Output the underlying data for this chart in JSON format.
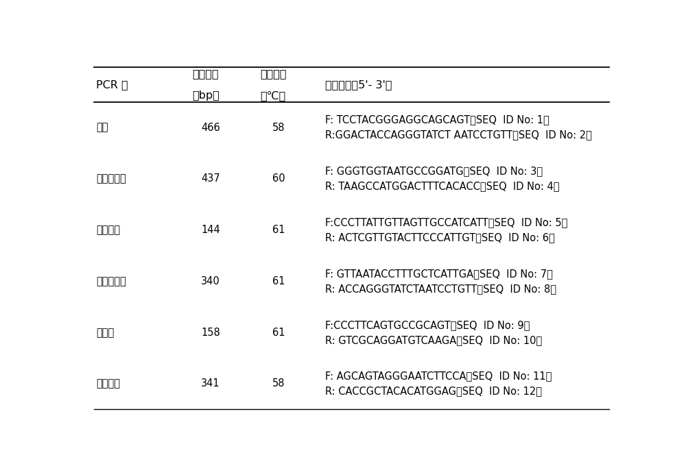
{
  "header_col1": "PCR 组",
  "header_col2_line1": "产物大小",
  "header_col2_line2": "（bp）",
  "header_col3_line1": "退火温度",
  "header_col3_line2": "（℃）",
  "header_col4": "引物序列（5'- 3'）",
  "rows": [
    {
      "group": "总菌",
      "size": "466",
      "temp": "58",
      "primers": [
        "F: TCCTACGGGAGGCAGCAGT（SEQ  ID No: 1）",
        "R:GGACTACCAGGGTATCT AATCCTGTT（SEQ  ID No: 2）"
      ]
    },
    {
      "group": "双岐杆菌属",
      "size": "437",
      "temp": "60",
      "primers": [
        "F: GGGTGGTAATGCCGGATG（SEQ  ID No: 3）",
        "R: TAAGCCATGGACTTTCACACC（SEQ  ID No: 4）"
      ]
    },
    {
      "group": "肠球菌属",
      "size": "144",
      "temp": "61",
      "primers": [
        "F:CCCTTATTGTTAGTTGCCATCATT（SEQ  ID No: 5）",
        "R: ACTCGTTGTACTTCCCATTGT（SEQ  ID No: 6）"
      ]
    },
    {
      "group": "大肠杆菌属",
      "size": "340",
      "temp": "61",
      "primers": [
        "F: GTTAATACCTTTGCTCATTGA（SEQ  ID No: 7）",
        "R: ACCAGGGTATCTAATCCTGTT（SEQ  ID No: 8）"
      ]
    },
    {
      "group": "梭菌属",
      "size": "158",
      "temp": "61",
      "primers": [
        "F:CCCTTCAGTGCCGCAGT（SEQ  ID No: 9）",
        "R: GTCGCAGGATGTCAAGA（SEQ  ID No: 10）"
      ]
    },
    {
      "group": "乳杆菌属",
      "size": "341",
      "temp": "58",
      "primers": [
        "F: AGCAGTAGGGAATCTTCCA（SEQ  ID No: 11）",
        "R: CACCGCTACACATGGAG（SEQ  ID No: 12）"
      ]
    }
  ],
  "fig_width": 10.0,
  "fig_height": 6.8,
  "background_color": "#ffffff",
  "text_color": "#000000",
  "line_color": "#000000",
  "font_size_header": 11.5,
  "font_size_body": 10.5
}
